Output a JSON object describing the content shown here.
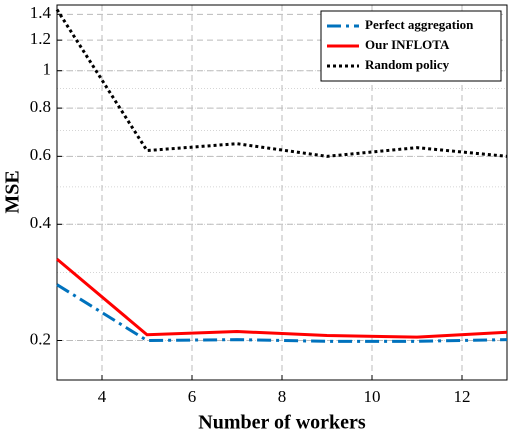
{
  "chart_data": {
    "type": "line",
    "xlabel": "Number of workers",
    "ylabel": "MSE",
    "x": [
      3,
      5,
      7,
      9,
      11,
      13
    ],
    "series": [
      {
        "name": "Perfect aggregation",
        "color": "#0072bd",
        "style": "dashdot",
        "values": [
          0.279,
          0.2,
          0.201,
          0.199,
          0.199,
          0.201
        ]
      },
      {
        "name": "Our  INFLOTA",
        "color": "#ff0000",
        "style": "solid",
        "values": [
          0.325,
          0.207,
          0.211,
          0.206,
          0.204,
          0.21
        ]
      },
      {
        "name": "Random policy",
        "color": "#000000",
        "style": "dotted",
        "values": [
          1.44,
          0.621,
          0.647,
          0.6,
          0.632,
          0.6
        ]
      }
    ],
    "xlim": [
      3,
      13
    ],
    "xticks": [
      4,
      6,
      8,
      10,
      12
    ],
    "ylim": [
      0.158,
      1.48
    ],
    "yticks": [
      0.2,
      0.4,
      0.6,
      0.8,
      1,
      1.2,
      1.4
    ],
    "yscale": "log",
    "grid": true,
    "legend": "upper right"
  }
}
